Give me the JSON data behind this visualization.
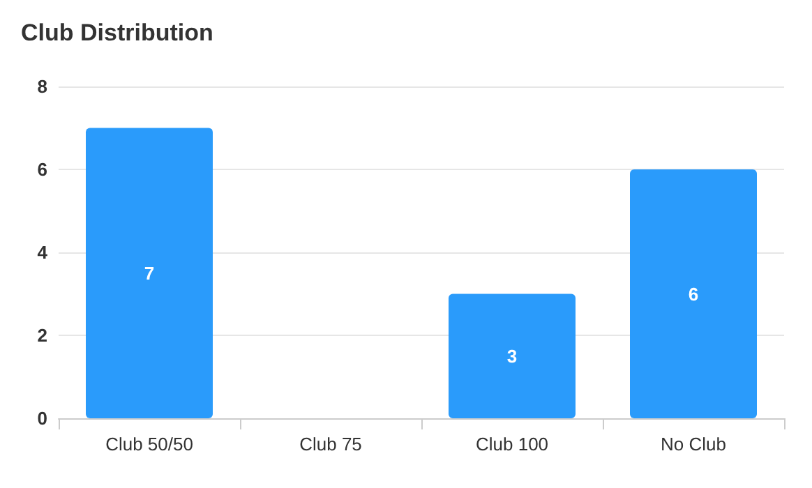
{
  "chart_data": {
    "type": "bar",
    "title": "Club Distribution",
    "categories": [
      "Club 50/50",
      "Club 75",
      "Club 100",
      "No Club"
    ],
    "values": [
      7,
      0,
      3,
      6
    ],
    "value_labels": [
      "7",
      null,
      "3",
      "6"
    ],
    "color": "#2a9bfb",
    "ylim": [
      0,
      8
    ],
    "yticks": [
      0,
      2,
      4,
      6,
      8
    ],
    "grid": "y"
  }
}
